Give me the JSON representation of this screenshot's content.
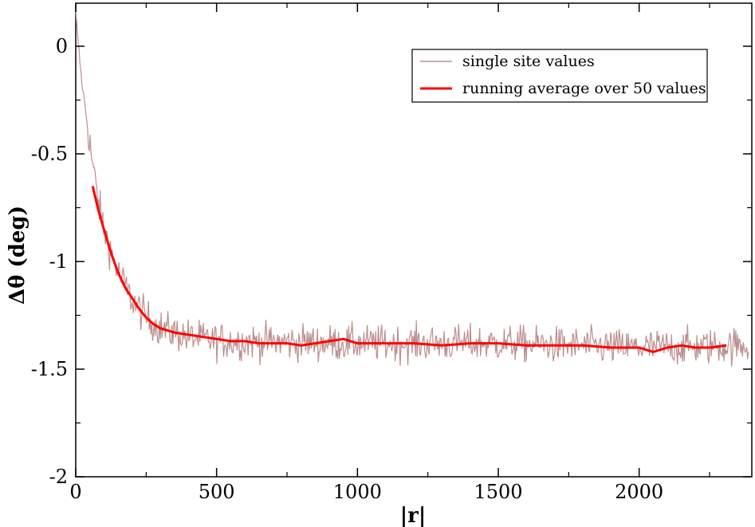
{
  "chart_data": {
    "type": "line",
    "title": "",
    "xlabel": "|r|",
    "ylabel": "Δθ  (deg)",
    "xlim": [
      0,
      2400
    ],
    "ylim": [
      -2,
      0.2
    ],
    "x_ticks": [
      0,
      500,
      1000,
      1500,
      2000
    ],
    "x_tick_labels": [
      "0",
      "500",
      "1000",
      "1500",
      "2000"
    ],
    "y_ticks": [
      0,
      -0.5,
      -1,
      -1.5,
      -2
    ],
    "y_tick_labels": [
      "0",
      "-0.5",
      "-1",
      "-1.5",
      "-2"
    ],
    "grid": false,
    "legend_position": "top-right",
    "series": [
      {
        "name": "single site values",
        "color": "#bc8f8f",
        "style": "thin noisy line",
        "x_range": [
          0,
          2390
        ],
        "noise_amplitude_deg": 0.06,
        "trend_x": [
          0,
          20,
          40,
          60,
          80,
          100,
          150,
          200,
          250,
          300,
          400,
          500,
          1000,
          1500,
          2000,
          2390
        ],
        "trend_y": [
          0.15,
          -0.15,
          -0.35,
          -0.55,
          -0.72,
          -0.85,
          -1.05,
          -1.18,
          -1.26,
          -1.31,
          -1.35,
          -1.37,
          -1.38,
          -1.38,
          -1.4,
          -1.39
        ]
      },
      {
        "name": "running average over 50 values",
        "color": "#ff0000",
        "style": "thick line",
        "x": [
          60,
          80,
          100,
          125,
          150,
          175,
          200,
          225,
          250,
          275,
          300,
          350,
          400,
          450,
          500,
          550,
          600,
          650,
          700,
          750,
          800,
          850,
          900,
          950,
          1000,
          1100,
          1200,
          1300,
          1400,
          1500,
          1600,
          1700,
          1800,
          1900,
          2000,
          2050,
          2100,
          2150,
          2200,
          2250,
          2310
        ],
        "y": [
          -0.65,
          -0.76,
          -0.85,
          -0.96,
          -1.05,
          -1.12,
          -1.17,
          -1.22,
          -1.26,
          -1.29,
          -1.31,
          -1.33,
          -1.34,
          -1.35,
          -1.36,
          -1.37,
          -1.37,
          -1.38,
          -1.38,
          -1.38,
          -1.39,
          -1.38,
          -1.37,
          -1.36,
          -1.38,
          -1.38,
          -1.38,
          -1.39,
          -1.38,
          -1.38,
          -1.39,
          -1.39,
          -1.39,
          -1.4,
          -1.4,
          -1.42,
          -1.4,
          -1.39,
          -1.4,
          -1.4,
          -1.39
        ]
      }
    ]
  }
}
